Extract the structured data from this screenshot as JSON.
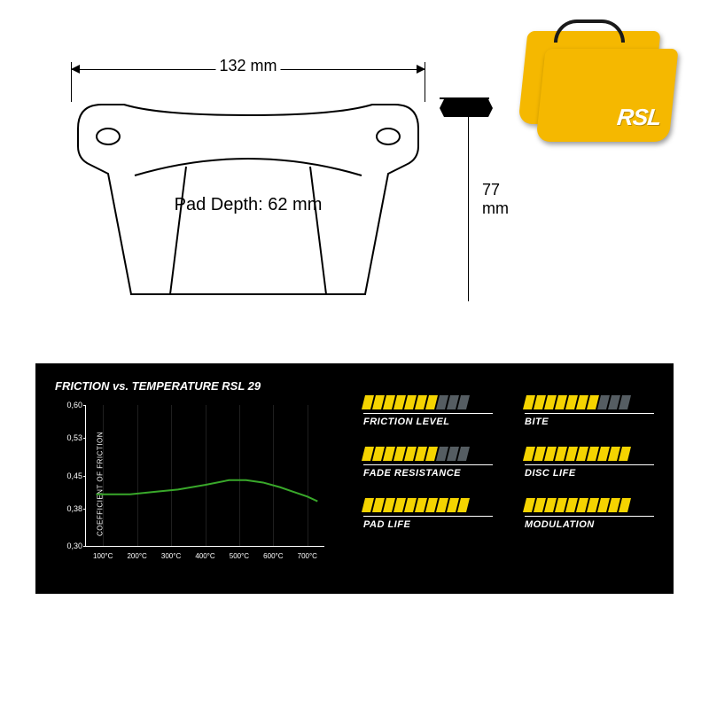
{
  "diagram": {
    "width_label": "132 mm",
    "height_label": "77 mm",
    "pad_depth_label": "Pad Depth: 62 mm",
    "outline_stroke": "#000000",
    "outline_stroke_width": 2
  },
  "product": {
    "logo_text": "RSL",
    "pad_color": "#f5b800",
    "logo_color": "#ffffff",
    "spring_color": "#1a1a1a"
  },
  "panel": {
    "background": "#000000",
    "chart": {
      "title": "FRICTION vs. TEMPERATURE RSL 29",
      "ylabel": "COEFFICIENT OF FRICTION",
      "ylim": [
        0.3,
        0.6
      ],
      "yticks": [
        0.3,
        0.38,
        0.45,
        0.53,
        0.6
      ],
      "ytick_labels": [
        "0,30",
        "0,38",
        "0,45",
        "0,53",
        "0,60"
      ],
      "xlim": [
        50,
        750
      ],
      "xticks": [
        100,
        200,
        300,
        400,
        500,
        600,
        700
      ],
      "xtick_labels": [
        "100°C",
        "200°C",
        "300°C",
        "400°C",
        "500°C",
        "600°C",
        "700°C"
      ],
      "curve": {
        "color": "#39a82a",
        "width": 2,
        "points": [
          [
            80,
            0.41
          ],
          [
            120,
            0.41
          ],
          [
            180,
            0.41
          ],
          [
            250,
            0.415
          ],
          [
            320,
            0.42
          ],
          [
            400,
            0.43
          ],
          [
            470,
            0.44
          ],
          [
            520,
            0.44
          ],
          [
            570,
            0.435
          ],
          [
            620,
            0.425
          ],
          [
            660,
            0.415
          ],
          [
            700,
            0.405
          ],
          [
            730,
            0.395
          ]
        ]
      },
      "grid_color": "rgba(255,255,255,0.12)",
      "axis_color": "#ffffff",
      "label_fontsize": 9
    },
    "ratings": {
      "max": 10,
      "bar_on_color": "#f5d400",
      "bar_off_color": "#555d62",
      "items": [
        {
          "label": "FRICTION LEVEL",
          "value": 7
        },
        {
          "label": "BITE",
          "value": 7
        },
        {
          "label": "FADE RESISTANCE",
          "value": 7
        },
        {
          "label": "DISC LIFE",
          "value": 10
        },
        {
          "label": "PAD LIFE",
          "value": 10
        },
        {
          "label": "MODULATION",
          "value": 10
        }
      ]
    }
  }
}
